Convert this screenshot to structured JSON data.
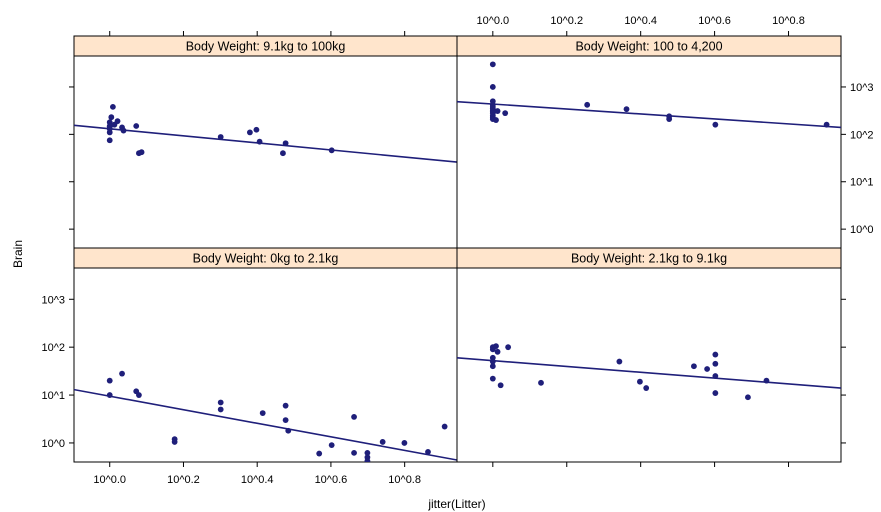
{
  "chart_data": {
    "type": "scatter",
    "xlabel": "jitter(Litter)",
    "ylabel": "Brain",
    "x_scale": "log10",
    "y_scale": "log10",
    "x_ticks": [
      {
        "value": 1.0,
        "label": "10^0.0"
      },
      {
        "value": 1.585,
        "label": "10^0.2"
      },
      {
        "value": 2.512,
        "label": "10^0.4"
      },
      {
        "value": 3.981,
        "label": "10^0.6"
      },
      {
        "value": 6.31,
        "label": "10^0.8"
      }
    ],
    "y_ticks": [
      {
        "value": 1,
        "label": "10^0"
      },
      {
        "value": 10,
        "label": "10^1"
      },
      {
        "value": 100,
        "label": "10^2"
      },
      {
        "value": 1000,
        "label": "10^3"
      }
    ],
    "xlim": [
      0.8,
      8.75
    ],
    "ylim": [
      0.4,
      4500
    ],
    "colors": {
      "points": "#1f1f7a",
      "line": "#1f1f7a",
      "strip": "#ffe5cc",
      "border": "#000000",
      "text": "#000000"
    },
    "panels": [
      {
        "strip": "Body Weight: 9.1kg to 100kg",
        "position": "top-left",
        "points": [
          [
            1.0,
            110
          ],
          [
            1.0,
            130
          ],
          [
            1.0,
            150
          ],
          [
            1.0,
            180
          ],
          [
            1.01,
            230
          ],
          [
            1.02,
            380
          ],
          [
            1.0,
            145
          ],
          [
            1.03,
            160
          ],
          [
            1.05,
            190
          ],
          [
            1.0,
            75
          ],
          [
            1.08,
            140
          ],
          [
            1.09,
            120
          ],
          [
            1.18,
            150
          ],
          [
            1.2,
            40
          ],
          [
            1.22,
            42
          ],
          [
            2.0,
            88
          ],
          [
            2.4,
            110
          ],
          [
            2.5,
            125
          ],
          [
            2.55,
            70
          ],
          [
            2.95,
            40
          ],
          [
            3.0,
            65
          ],
          [
            4.0,
            46
          ]
        ],
        "fit": {
          "x": [
            0.8,
            8.75
          ],
          "y": [
            155,
            26
          ]
        }
      },
      {
        "strip": "Body Weight: 100 to 4,200",
        "position": "top-right",
        "points": [
          [
            1.0,
            3000
          ],
          [
            1.0,
            1000
          ],
          [
            1.0,
            500
          ],
          [
            1.0,
            420
          ],
          [
            1.0,
            380
          ],
          [
            1.0,
            350
          ],
          [
            1.0,
            320
          ],
          [
            1.0,
            300
          ],
          [
            1.0,
            280
          ],
          [
            1.0,
            250
          ],
          [
            1.0,
            230
          ],
          [
            1.0,
            210
          ],
          [
            1.02,
            200
          ],
          [
            1.03,
            310
          ],
          [
            1.08,
            280
          ],
          [
            1.8,
            420
          ],
          [
            2.3,
            340
          ],
          [
            3.0,
            240
          ],
          [
            3.0,
            210
          ],
          [
            4.0,
            160
          ],
          [
            8.0,
            160
          ]
        ],
        "fit": {
          "x": [
            0.8,
            8.75
          ],
          "y": [
            490,
            140
          ]
        }
      },
      {
        "strip": "Body Weight: 0kg to 2.1kg",
        "position": "bottom-left",
        "points": [
          [
            1.0,
            20
          ],
          [
            1.0,
            10
          ],
          [
            1.08,
            28
          ],
          [
            1.18,
            12
          ],
          [
            1.2,
            10
          ],
          [
            1.5,
            1.2
          ],
          [
            1.5,
            1.05
          ],
          [
            2.0,
            7.0
          ],
          [
            2.0,
            5.0
          ],
          [
            2.6,
            4.2
          ],
          [
            3.0,
            6.0
          ],
          [
            3.0,
            3.0
          ],
          [
            3.05,
            1.8
          ],
          [
            3.7,
            0.6
          ],
          [
            4.0,
            0.9
          ],
          [
            4.6,
            3.5
          ],
          [
            4.6,
            0.62
          ],
          [
            5.0,
            0.62
          ],
          [
            5.0,
            0.5
          ],
          [
            5.0,
            0.42
          ],
          [
            5.5,
            1.05
          ],
          [
            6.3,
            1.0
          ],
          [
            7.3,
            0.65
          ],
          [
            8.1,
            2.2
          ]
        ],
        "fit": {
          "x": [
            0.8,
            8.75
          ],
          "y": [
            13,
            0.44
          ]
        }
      },
      {
        "strip": "Body Weight: 2.1kg to 9.1kg",
        "position": "bottom-right",
        "points": [
          [
            1.0,
            100
          ],
          [
            1.0,
            90
          ],
          [
            1.0,
            60
          ],
          [
            1.0,
            50
          ],
          [
            1.0,
            40
          ],
          [
            1.0,
            22
          ],
          [
            1.02,
            105
          ],
          [
            1.03,
            80
          ],
          [
            1.05,
            16
          ],
          [
            1.1,
            100
          ],
          [
            1.35,
            18
          ],
          [
            2.2,
            50
          ],
          [
            2.5,
            19
          ],
          [
            2.6,
            14
          ],
          [
            3.5,
            40
          ],
          [
            3.8,
            35
          ],
          [
            4.0,
            70
          ],
          [
            4.0,
            45
          ],
          [
            4.0,
            25
          ],
          [
            4.0,
            11
          ],
          [
            4.9,
            9
          ],
          [
            5.5,
            20
          ]
        ],
        "fit": {
          "x": [
            0.8,
            8.75
          ],
          "y": [
            60,
            14
          ]
        }
      }
    ]
  }
}
